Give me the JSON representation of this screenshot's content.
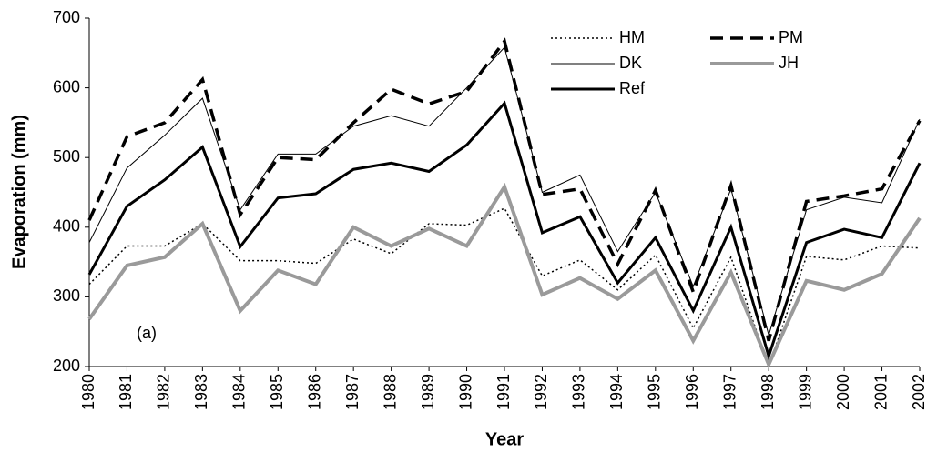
{
  "chart_data": {
    "type": "line",
    "y_label": "Evaporation (mm)",
    "x_label": "Year",
    "annotation": "(a)",
    "categories": [
      "1980",
      "1981",
      "1982",
      "1983",
      "1984",
      "1985",
      "1986",
      "1987",
      "1988",
      "1989",
      "1990",
      "1991",
      "1992",
      "1993",
      "1994",
      "1995",
      "1996",
      "1997",
      "1998",
      "1999",
      "2000",
      "2001",
      "2002"
    ],
    "ylim": [
      200,
      700
    ],
    "yticks": [
      200,
      300,
      400,
      500,
      600,
      700
    ],
    "grid": false,
    "legend": "upper right",
    "series": [
      {
        "name": "HM",
        "color": "#000000",
        "line_style": "dotted",
        "line_width": 1.5,
        "values": [
          318,
          373,
          373,
          405,
          352,
          352,
          348,
          383,
          362,
          405,
          403,
          427,
          330,
          353,
          310,
          360,
          255,
          357,
          200,
          358,
          353,
          373,
          370
        ]
      },
      {
        "name": "PM",
        "color": "#000000",
        "line_style": "dashed",
        "line_width": 3.5,
        "values": [
          410,
          530,
          550,
          612,
          418,
          500,
          497,
          550,
          598,
          577,
          595,
          667,
          447,
          455,
          347,
          453,
          307,
          460,
          237,
          437,
          445,
          455,
          553
        ]
      },
      {
        "name": "DK",
        "color": "#000000",
        "line_style": "solid",
        "line_width": 1,
        "values": [
          378,
          485,
          532,
          585,
          425,
          505,
          505,
          545,
          560,
          545,
          600,
          658,
          450,
          475,
          365,
          450,
          315,
          455,
          245,
          425,
          443,
          435,
          555
        ]
      },
      {
        "name": "JH",
        "color": "#9a9a9a",
        "line_style": "solid",
        "line_width": 4,
        "values": [
          268,
          345,
          357,
          405,
          280,
          338,
          318,
          400,
          373,
          398,
          373,
          458,
          303,
          327,
          297,
          338,
          237,
          335,
          203,
          323,
          310,
          333,
          413
        ]
      },
      {
        "name": "Ref",
        "color": "#000000",
        "line_style": "solid",
        "line_width": 3,
        "values": [
          332,
          430,
          468,
          515,
          372,
          442,
          448,
          483,
          492,
          480,
          518,
          578,
          392,
          415,
          320,
          385,
          280,
          400,
          215,
          378,
          397,
          385,
          492
        ]
      }
    ]
  }
}
